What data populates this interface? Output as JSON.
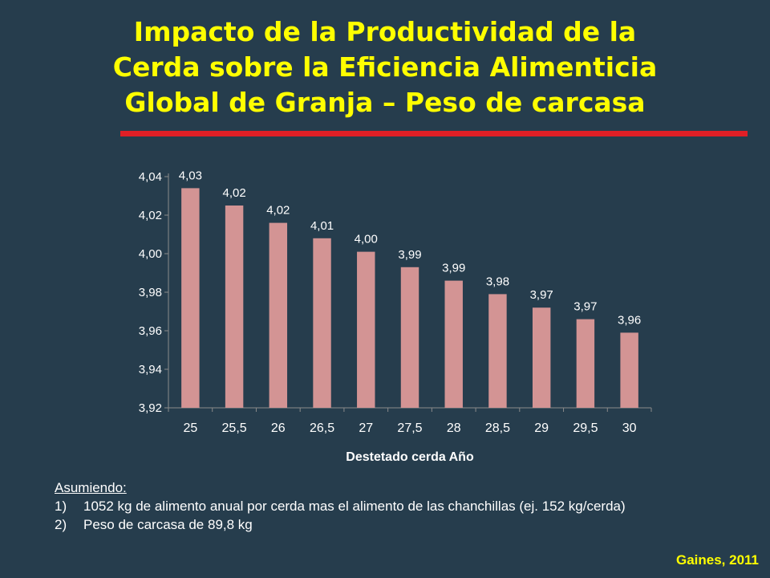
{
  "title_lines": [
    "Impacto de la Productividad de la",
    "Cerda sobre la Eficiencia Alimenticia",
    "Global de Granja – Peso de carcasa"
  ],
  "chart_data": {
    "type": "bar",
    "categories": [
      "25",
      "25,5",
      "26",
      "26,5",
      "27",
      "27,5",
      "28",
      "28,5",
      "29",
      "29,5",
      "30"
    ],
    "values": [
      4.034,
      4.025,
      4.016,
      4.008,
      4.001,
      3.993,
      3.986,
      3.979,
      3.972,
      3.966,
      3.959
    ],
    "data_labels": [
      "4,03",
      "4,02",
      "4,02",
      "4,01",
      "4,00",
      "3,99",
      "3,99",
      "3,98",
      "3,97",
      "3,97",
      "3,96"
    ],
    "ylim": [
      3.92,
      4.04
    ],
    "yticks": [
      "3,92",
      "3,94",
      "3,96",
      "3,98",
      "4,00",
      "4,02",
      "4,04"
    ],
    "xlabel": "Destetado cerda Año",
    "ylabel": "",
    "title": "",
    "grid": false,
    "legend": "none",
    "bar_color": "#d39494"
  },
  "notes": {
    "heading": "Asumiendo:",
    "items": [
      {
        "num": "1)",
        "text": "1052 kg de alimento anual por cerda mas el alimento de las chanchillas (ej. 152 kg/cerda)"
      },
      {
        "num": "2)",
        "text": "Peso de carcasa de 89,8 kg"
      }
    ]
  },
  "source": "Gaines, 2011",
  "colors": {
    "background": "#263d4d",
    "title": "#ffff00",
    "rule": "#e01f26",
    "text": "#ffffff"
  }
}
